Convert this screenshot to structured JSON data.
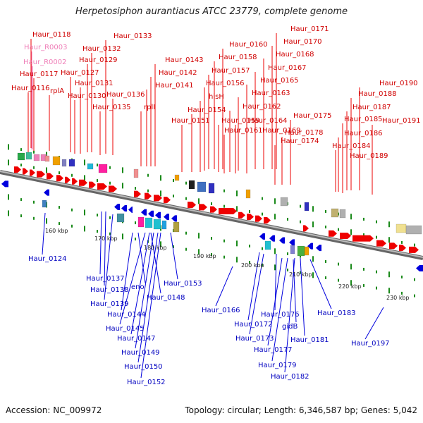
{
  "title": "Herpetosiphon aurantiacus ATCC 23779, complete genome",
  "accession_label": "Accession: NC_009972",
  "summary_label": "Topology: circular; Length: 6,346,587 bp; Genes: 5,042",
  "colors": {
    "forward": "#ee0000",
    "reverse": "#0000dd",
    "rna": "#ef7fb8",
    "tick": "#1a8a1a",
    "backbone": "#888888"
  },
  "top_labels": [
    {
      "text": "Haur_0118",
      "kind": "gene"
    },
    {
      "text": "Haur_R0003",
      "kind": "rna"
    },
    {
      "text": "Haur_R0002",
      "kind": "rna"
    },
    {
      "text": "Haur_0117",
      "kind": "gene"
    },
    {
      "text": "Haur_0116",
      "kind": "gene"
    },
    {
      "text": "rplA",
      "kind": "gene"
    },
    {
      "text": "Haur_0133",
      "kind": "gene"
    },
    {
      "text": "Haur_0132",
      "kind": "gene"
    },
    {
      "text": "Haur_0129",
      "kind": "gene"
    },
    {
      "text": "Haur_0127",
      "kind": "gene"
    },
    {
      "text": "Haur_0131",
      "kind": "gene"
    },
    {
      "text": "Haur_0130",
      "kind": "gene"
    },
    {
      "text": "Haur_0136",
      "kind": "gene"
    },
    {
      "text": "Haur_0135",
      "kind": "gene"
    },
    {
      "text": "Haur_0143",
      "kind": "gene"
    },
    {
      "text": "Haur_0142",
      "kind": "gene"
    },
    {
      "text": "Haur_0141",
      "kind": "gene"
    },
    {
      "text": "rplI",
      "kind": "gene"
    },
    {
      "text": "Haur_0171",
      "kind": "gene"
    },
    {
      "text": "Haur_0170",
      "kind": "gene"
    },
    {
      "text": "Haur_0160",
      "kind": "gene"
    },
    {
      "text": "Haur_0168",
      "kind": "gene"
    },
    {
      "text": "Haur_0158",
      "kind": "gene"
    },
    {
      "text": "Haur_0167",
      "kind": "gene"
    },
    {
      "text": "Haur_0157",
      "kind": "gene"
    },
    {
      "text": "Haur_0165",
      "kind": "gene"
    },
    {
      "text": "Haur_0156",
      "kind": "gene"
    },
    {
      "text": "Haur_0163",
      "kind": "gene"
    },
    {
      "text": "hisH",
      "kind": "gene"
    },
    {
      "text": "Haur_0162",
      "kind": "gene"
    },
    {
      "text": "Haur_0154",
      "kind": "gene"
    },
    {
      "text": "Haur_0151",
      "kind": "gene"
    },
    {
      "text": "Haur_0159",
      "kind": "gene"
    },
    {
      "text": "Haur_0164",
      "kind": "gene"
    },
    {
      "text": "Haur_0161",
      "kind": "gene"
    },
    {
      "text": "Haur_0169",
      "kind": "gene"
    },
    {
      "text": "Haur_0175",
      "kind": "gene"
    },
    {
      "text": "Haur_0178",
      "kind": "gene"
    },
    {
      "text": "Haur_0174",
      "kind": "gene"
    },
    {
      "text": "Haur_0190",
      "kind": "gene"
    },
    {
      "text": "Haur_0188",
      "kind": "gene"
    },
    {
      "text": "Haur_0187",
      "kind": "gene"
    },
    {
      "text": "Haur_0185",
      "kind": "gene"
    },
    {
      "text": "Haur_0191",
      "kind": "gene"
    },
    {
      "text": "Haur_0186",
      "kind": "gene"
    },
    {
      "text": "Haur_0184",
      "kind": "gene"
    },
    {
      "text": "Haur_0189",
      "kind": "gene"
    }
  ],
  "bottom_labels": [
    {
      "text": "Haur_0124"
    },
    {
      "text": "Haur_0137"
    },
    {
      "text": "Haur_0138"
    },
    {
      "text": "eno"
    },
    {
      "text": "Haur_0139"
    },
    {
      "text": "Haur_0148"
    },
    {
      "text": "Haur_0144"
    },
    {
      "text": "Haur_0145"
    },
    {
      "text": "Haur_0147"
    },
    {
      "text": "Haur_0149"
    },
    {
      "text": "Haur_0150"
    },
    {
      "text": "Haur_0152"
    },
    {
      "text": "Haur_0153"
    },
    {
      "text": "Haur_0166"
    },
    {
      "text": "Haur_0176"
    },
    {
      "text": "Haur_0172"
    },
    {
      "text": "gidB"
    },
    {
      "text": "Haur_0173"
    },
    {
      "text": "Haur_0181"
    },
    {
      "text": "Haur_0177"
    },
    {
      "text": "Haur_0179"
    },
    {
      "text": "Haur_0182"
    },
    {
      "text": "Haur_0183"
    },
    {
      "text": "Haur_0197"
    }
  ],
  "scale_labels": [
    "160 kbp",
    "170 kbp",
    "180 kbp",
    "190 kbp",
    "200 kbp",
    "210 kbp",
    "220 kbp",
    "230 kbp"
  ]
}
